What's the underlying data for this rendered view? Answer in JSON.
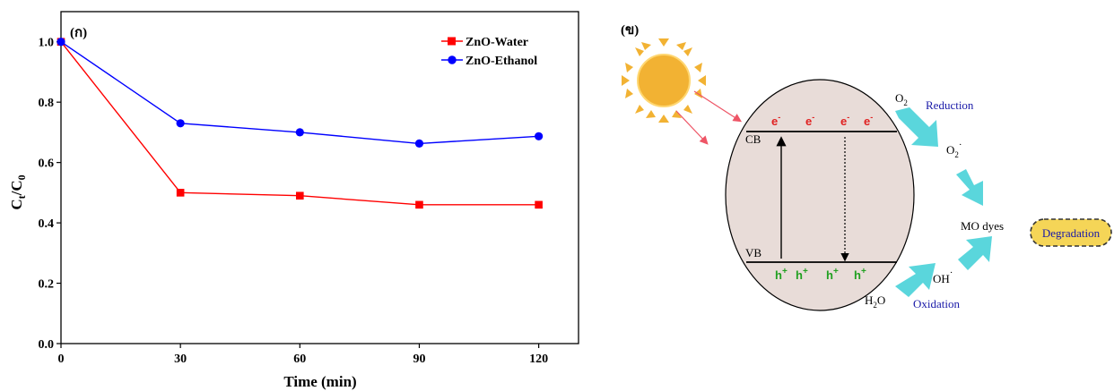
{
  "chart_data": {
    "type": "line",
    "panel_label": "(ก)",
    "x": [
      0,
      30,
      60,
      90,
      120
    ],
    "xlabel": "Time (min)",
    "ylabel_main": "C",
    "ylabel_sub_1": "t",
    "ylabel_slash": "/C",
    "ylabel_sub_2": "0",
    "xlim": [
      0,
      130
    ],
    "ylim": [
      0,
      1.1
    ],
    "xticks": [
      "0",
      "30",
      "60",
      "90",
      "120"
    ],
    "yticks": [
      "0.0",
      "0.2",
      "0.4",
      "0.6",
      "0.8",
      "1.0"
    ],
    "grid": false,
    "legend_position": "top-right",
    "series": [
      {
        "name": "ZnO-Water",
        "marker": "square",
        "color": "#ff0000",
        "values": [
          1.0,
          0.5,
          0.49,
          0.46,
          0.46
        ]
      },
      {
        "name": "ZnO-Ethanol",
        "marker": "circle",
        "color": "#0000ff",
        "values": [
          1.0,
          0.73,
          0.7,
          0.663,
          0.687
        ]
      }
    ]
  },
  "diagram": {
    "panel_label": "(ข)",
    "cb_label": "CB",
    "vb_label": "VB",
    "electron": "e",
    "electron_charge": "-",
    "hole": "h",
    "hole_charge": "+",
    "o2_main": "O",
    "o2_sub": "2",
    "superoxide_main": "O",
    "superoxide_sub": "2",
    "superoxide_sup": "·",
    "hydroxyl_main": "OH",
    "hydroxyl_sup": "·",
    "water_h": "H",
    "water_sub": "2",
    "water_o": "O",
    "reduction_label": "Reduction",
    "oxidation_label": "Oxidation",
    "dyes_label": "MO dyes",
    "degradation_label": "Degradation",
    "colors": {
      "sun": "#f2b233",
      "particle": "#e8dcd8",
      "cyan_arrow": "#5ad6dc",
      "degradation_fill": "#f5d557",
      "light_ray": "#ee5566"
    }
  }
}
